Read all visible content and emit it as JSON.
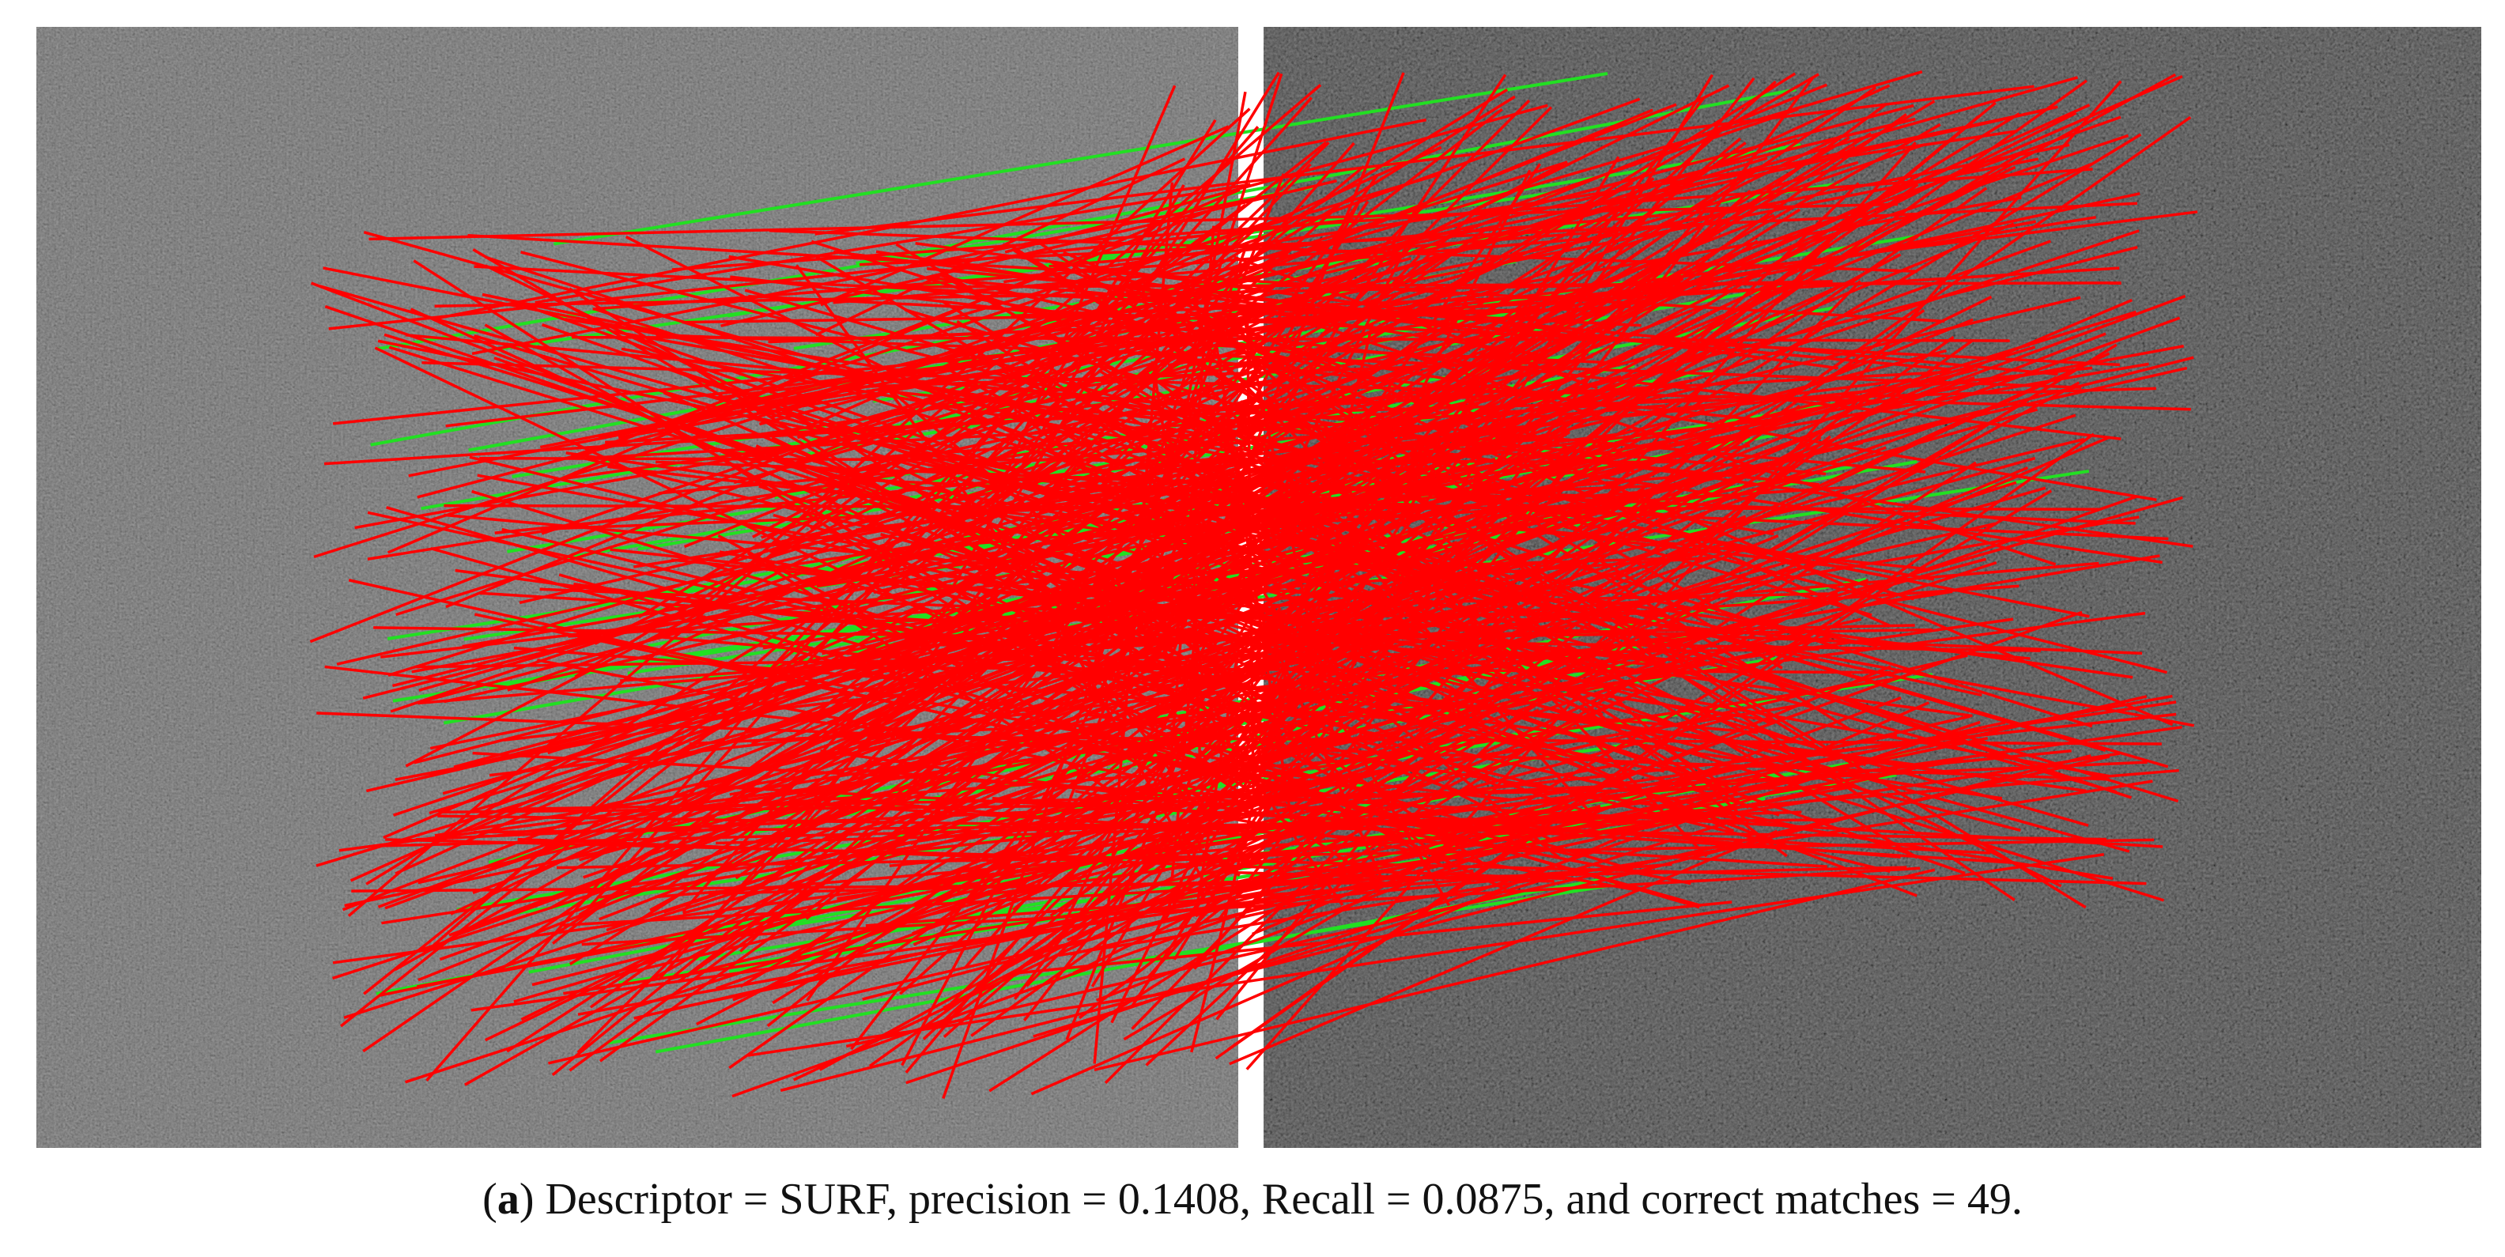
{
  "caption": {
    "open": "(",
    "label": "a",
    "text": ") Descriptor = SURF, precision = 0.1408, Recall = 0.0875, and correct matches = 49."
  }
}
